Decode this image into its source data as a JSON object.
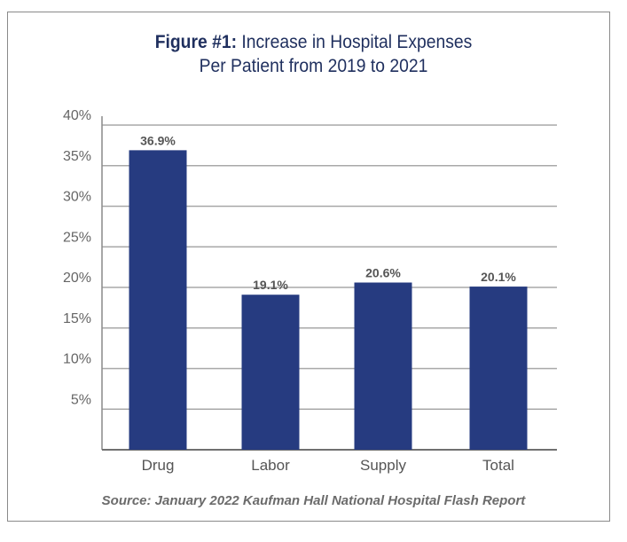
{
  "chart_data": {
    "type": "bar",
    "title_prefix": "Figure #1:",
    "title_line1": "Increase in Hospital Expenses",
    "title_line2": "Per Patient from 2019 to 2021",
    "categories": [
      "Drug",
      "Labor",
      "Supply",
      "Total"
    ],
    "values": [
      36.9,
      19.1,
      20.6,
      20.1
    ],
    "data_labels": [
      "36.9%",
      "19.1%",
      "20.6%",
      "20.1%"
    ],
    "yticks": [
      "5%",
      "10%",
      "15%",
      "20%",
      "25%",
      "30%",
      "35%",
      "40%"
    ],
    "ylim": [
      0,
      40
    ],
    "xlabel": "",
    "ylabel": "",
    "grid": true,
    "bar_color": "#263b80",
    "source": "Source: January 2022 Kaufman Hall National Hospital Flash Report"
  }
}
